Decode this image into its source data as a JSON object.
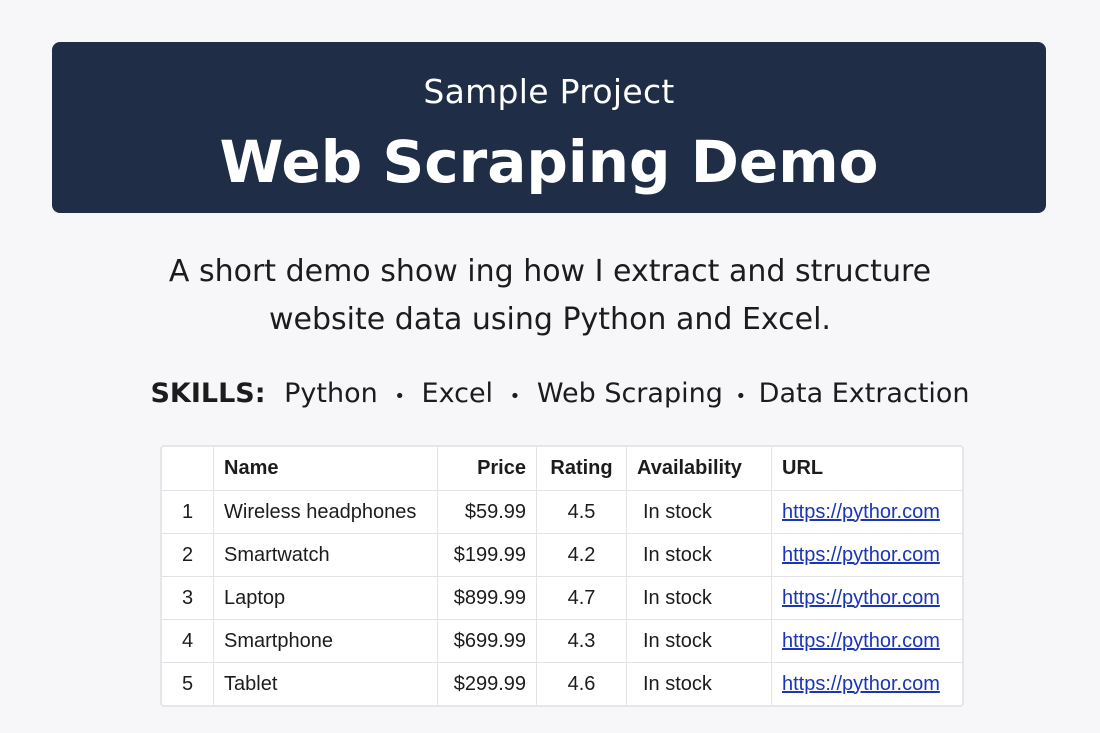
{
  "header": {
    "subtitle": "Sample Project",
    "title": "Web Scraping Demo",
    "bg_color": "#1f2d47"
  },
  "description": {
    "line1": "A short demo show ing how I extract and structure",
    "line2": "website data using Python and Excel."
  },
  "skills": {
    "label": "SKILLS:",
    "items": [
      "Python",
      "Excel",
      "Web Scraping",
      "Data Extraction"
    ],
    "separator": "•"
  },
  "table": {
    "columns": [
      "",
      "Name",
      "Price",
      "Rating",
      "Availability",
      "URL"
    ],
    "rows": [
      [
        "1",
        "Wireless headphones",
        "$59.99",
        "4.5",
        "In stock",
        "https://pythor.com"
      ],
      [
        "2",
        "Smartwatch",
        "$199.99",
        "4.2",
        "In stock",
        "https://pythor.com"
      ],
      [
        "3",
        "Laptop",
        "$899.99",
        "4.7",
        "In stock",
        "https://pythor.com"
      ],
      [
        "4",
        "Smartphone",
        "$699.99",
        "4.3",
        "In stock",
        "https://pythor.com"
      ],
      [
        "5",
        "Tablet",
        "$299.99",
        "4.6",
        "In stock",
        "https://pythor.com"
      ]
    ]
  }
}
